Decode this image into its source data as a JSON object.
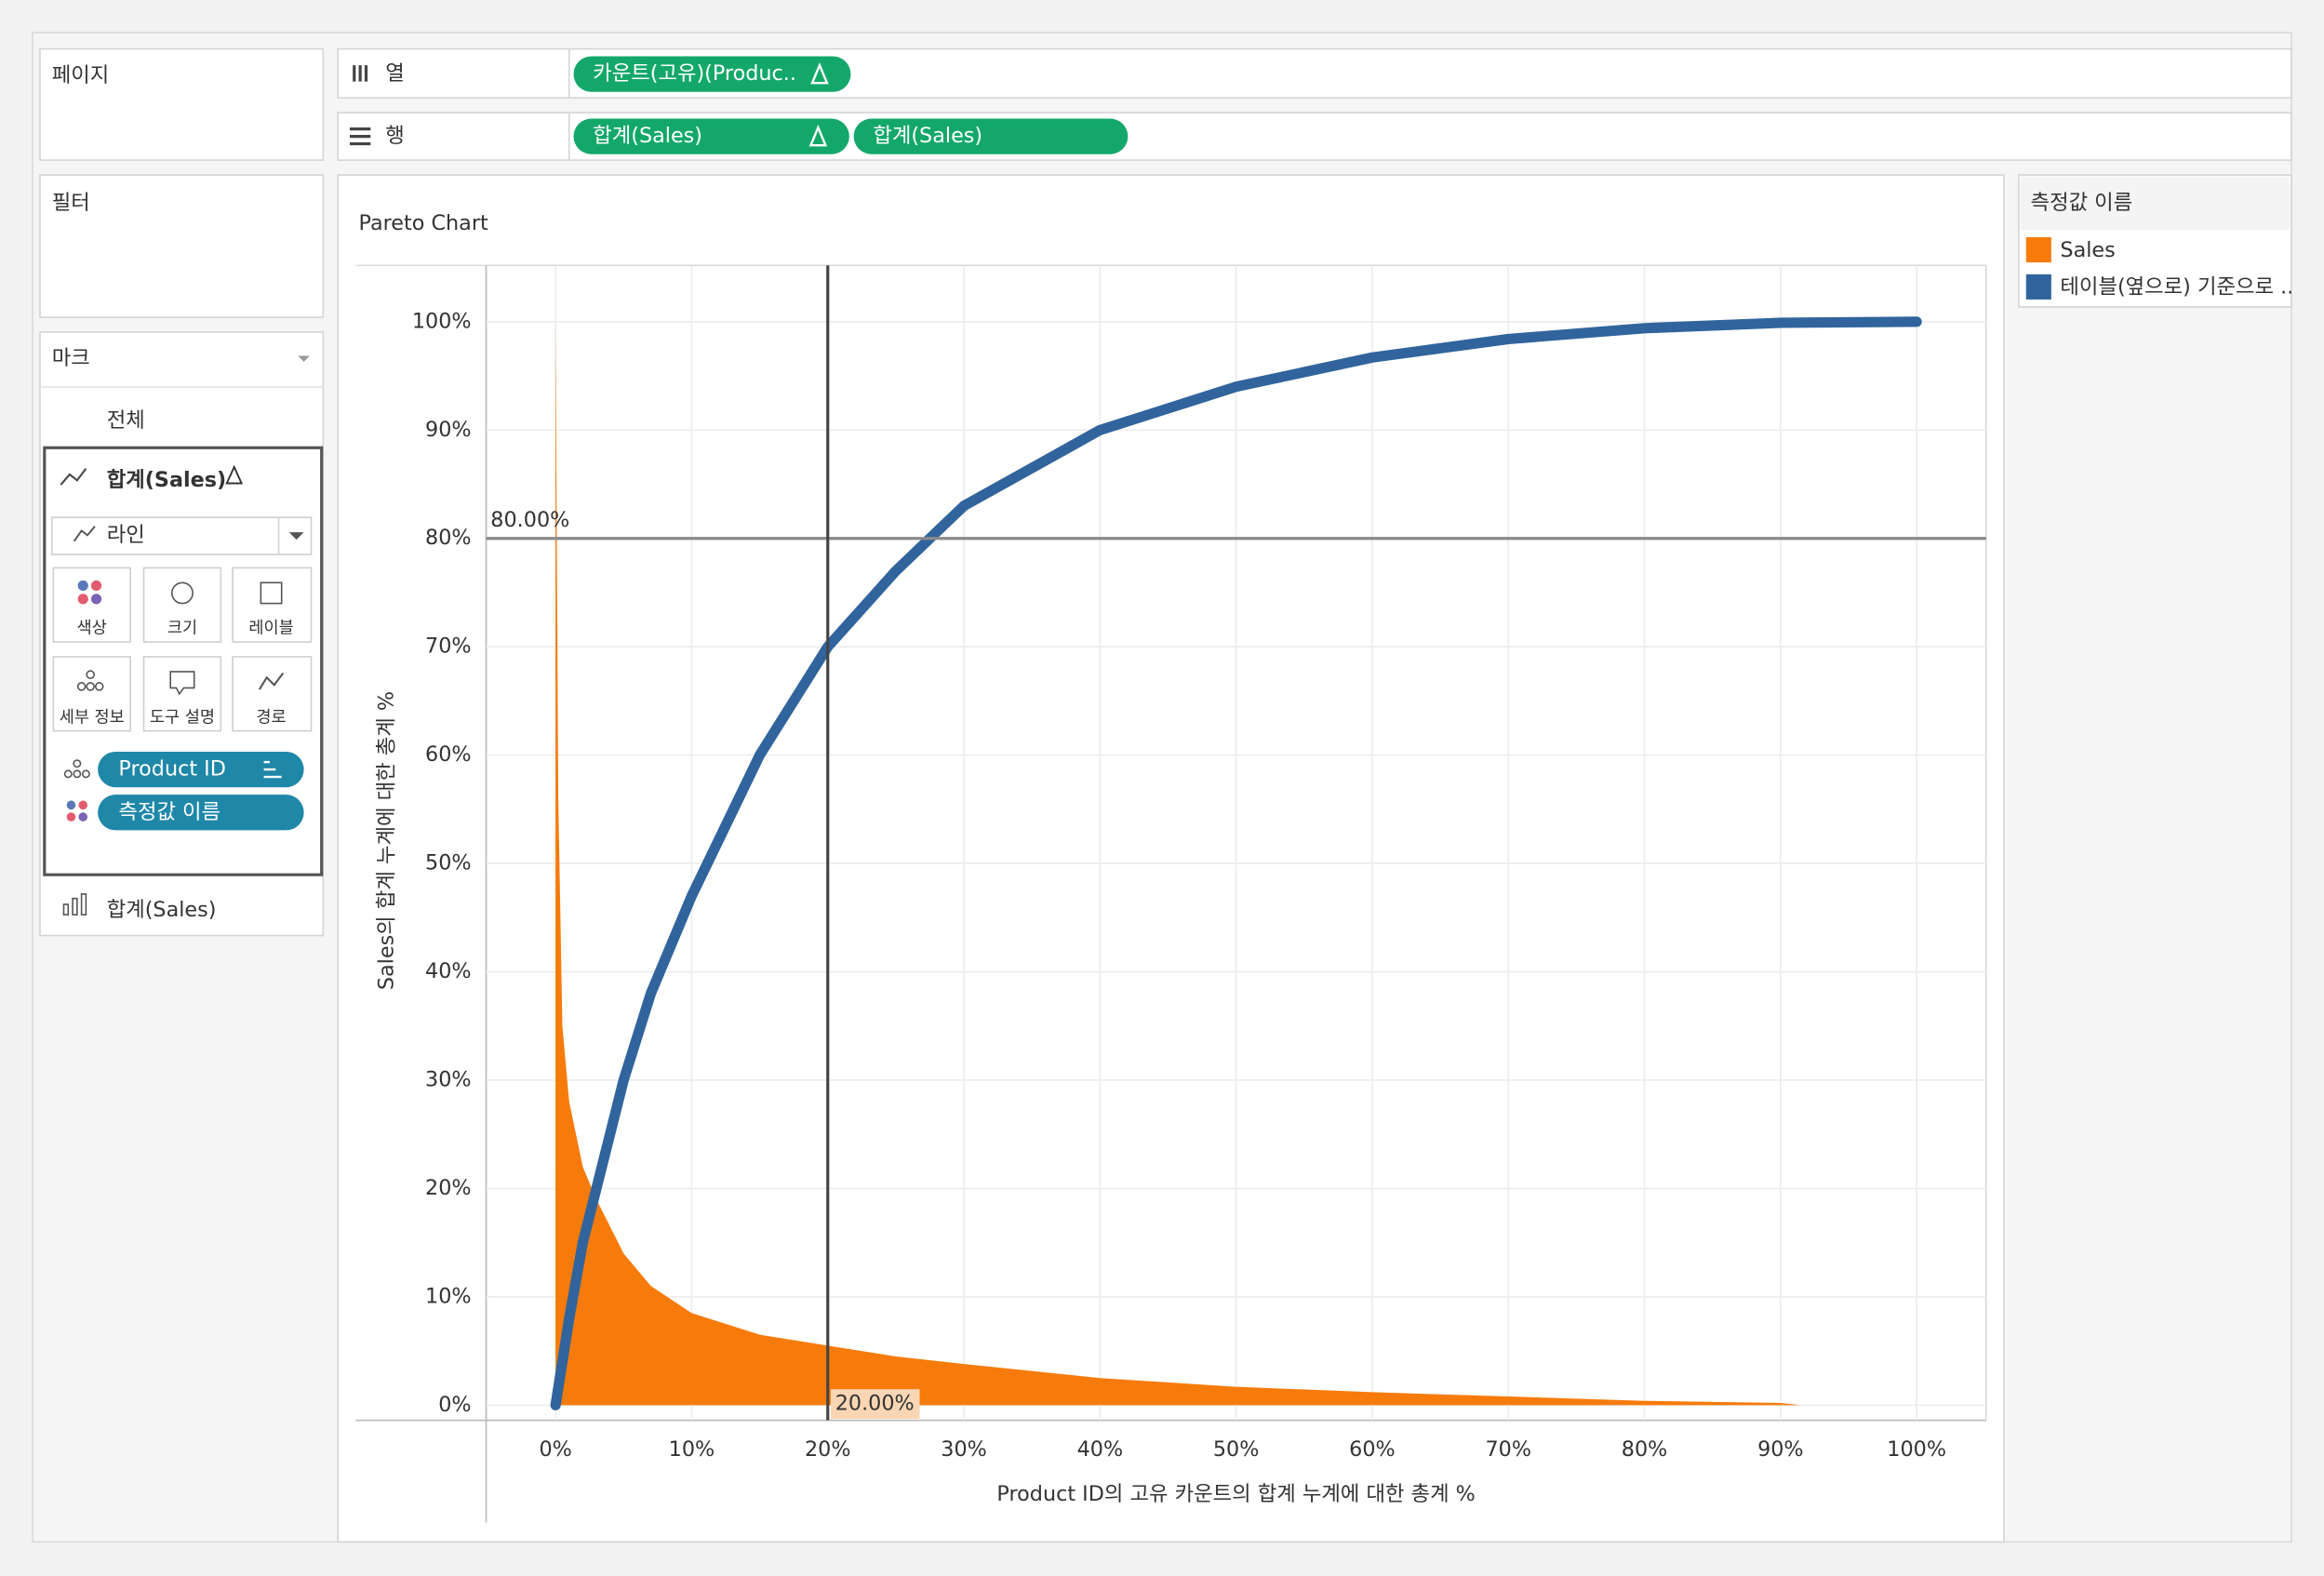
{
  "shelves": {
    "pages": "페이지",
    "filters": "필터",
    "columns_label": "열",
    "rows_label": "행",
    "columns_pills": [
      "카운트(고유)(Produc.."
    ],
    "rows_pills": [
      "합계(Sales)",
      "합계(Sales)"
    ]
  },
  "marks": {
    "title": "마크",
    "all": "전체",
    "card1": "합계(Sales)",
    "mark_type": "라인",
    "buttons": [
      "색상",
      "크기",
      "레이블",
      "세부 정보",
      "도구 설명",
      "경로"
    ],
    "pills": [
      "Product ID",
      "측정값 이름"
    ],
    "card2": "합계(Sales)"
  },
  "chart_data": {
    "type": "pareto",
    "title": "Pareto Chart",
    "x_label": "Product ID의 고유 카운트의 합계 누계에 대한 총계 %",
    "y_label": "Sales의 합계 누계에 대한 총계 %",
    "legend_title": "측정값 이름",
    "series": [
      {
        "name": "Sales",
        "color": "#f77b0b",
        "mark": "area",
        "x": [
          0,
          0.2,
          0.5,
          1,
          2,
          3,
          5,
          7,
          10,
          15,
          20,
          25,
          30,
          40,
          50,
          60,
          70,
          80,
          90,
          91.5
        ],
        "values": [
          100,
          56,
          35,
          28,
          22,
          19,
          14,
          11,
          8.5,
          6.5,
          5.5,
          4.5,
          3.8,
          2.5,
          1.7,
          1.2,
          0.8,
          0.4,
          0.2,
          0
        ]
      },
      {
        "name": "테이블(옆으로) 기준으로 ..",
        "color": "#31649c",
        "mark": "line",
        "x": [
          0,
          1,
          2,
          3,
          5,
          7,
          10,
          15,
          20,
          25,
          30,
          40,
          50,
          60,
          70,
          80,
          90,
          100
        ],
        "values": [
          0,
          8,
          15,
          20,
          30,
          38,
          47,
          60,
          70,
          77,
          83,
          90,
          94,
          96.7,
          98.4,
          99.4,
          99.9,
          100
        ]
      }
    ],
    "xlim": [
      -5.1,
      105.1
    ],
    "ylim": [
      -1.4,
      105.2
    ],
    "xticks": [
      {
        "value": 0,
        "label": "0%"
      },
      {
        "value": 10,
        "label": "10%"
      },
      {
        "value": 20,
        "label": "20%"
      },
      {
        "value": 30,
        "label": "30%"
      },
      {
        "value": 40,
        "label": "40%"
      },
      {
        "value": 50,
        "label": "50%"
      },
      {
        "value": 60,
        "label": "60%"
      },
      {
        "value": 70,
        "label": "70%"
      },
      {
        "value": 80,
        "label": "80%"
      },
      {
        "value": 90,
        "label": "90%"
      },
      {
        "value": 100,
        "label": "100%"
      }
    ],
    "yticks": [
      {
        "value": 0,
        "label": "0%"
      },
      {
        "value": 10,
        "label": "10%"
      },
      {
        "value": 20,
        "label": "20%"
      },
      {
        "value": 30,
        "label": "30%"
      },
      {
        "value": 40,
        "label": "40%"
      },
      {
        "value": 50,
        "label": "50%"
      },
      {
        "value": 60,
        "label": "60%"
      },
      {
        "value": 70,
        "label": "70%"
      },
      {
        "value": 80,
        "label": "80%"
      },
      {
        "value": 90,
        "label": "90%"
      },
      {
        "value": 100,
        "label": "100%"
      }
    ],
    "grid": true,
    "reference_lines": [
      {
        "axis": "y",
        "value": 80,
        "label": "80.00%"
      },
      {
        "axis": "x",
        "value": 20,
        "label": "20.00%"
      }
    ]
  }
}
